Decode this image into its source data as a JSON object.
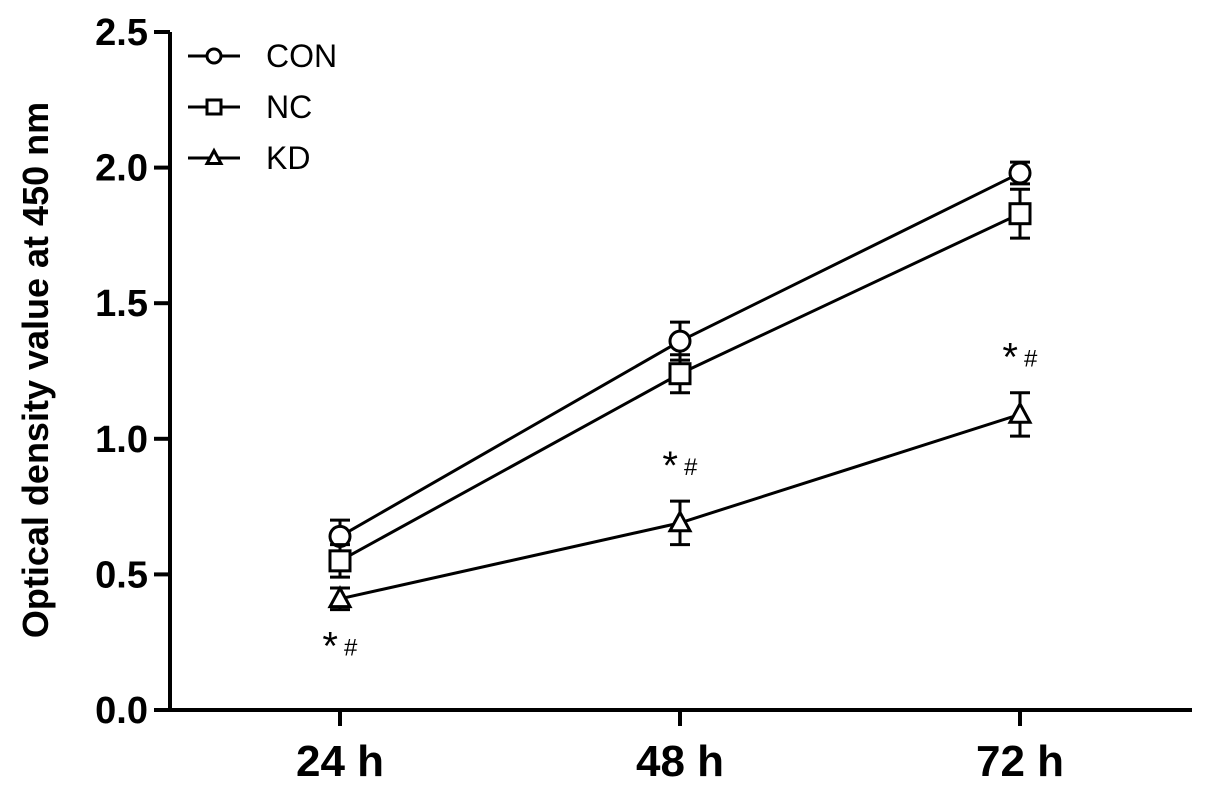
{
  "chart_data": {
    "type": "line",
    "ylabel": "Optical density value at 450 nm",
    "xlabel": "",
    "categories": [
      "24 h",
      "48 h",
      "72 h"
    ],
    "ylim": [
      0,
      2.5
    ],
    "yticks": [
      "0.0",
      "0.5",
      "1.0",
      "1.5",
      "2.0",
      "2.5"
    ],
    "grid": false,
    "legend_position": "top-left",
    "series": [
      {
        "name": "CON",
        "marker": "circle",
        "values": [
          0.64,
          1.36,
          1.98
        ],
        "errors": [
          0.06,
          0.07,
          0.04
        ]
      },
      {
        "name": "NC",
        "marker": "square",
        "values": [
          0.55,
          1.24,
          1.83
        ],
        "errors": [
          0.06,
          0.07,
          0.09
        ]
      },
      {
        "name": "KD",
        "marker": "triangle",
        "values": [
          0.41,
          0.69,
          1.09
        ],
        "errors": [
          0.04,
          0.08,
          0.08
        ]
      }
    ],
    "annotations": [
      {
        "category": "24 h",
        "star": "*",
        "hash": "#",
        "placement": "below"
      },
      {
        "category": "48 h",
        "star": "*",
        "hash": "#",
        "placement": "above"
      },
      {
        "category": "72 h",
        "star": "*",
        "hash": "#",
        "placement": "above"
      }
    ]
  }
}
